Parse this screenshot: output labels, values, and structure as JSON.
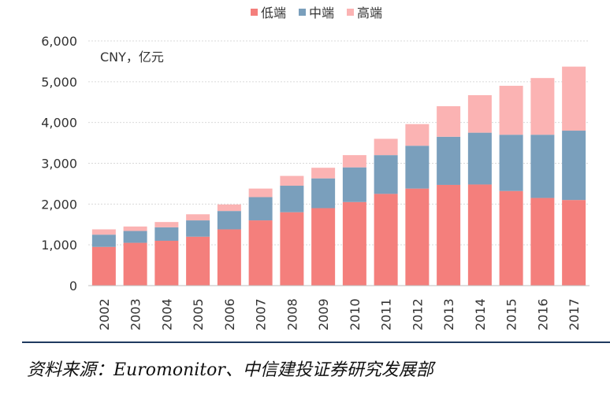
{
  "chart_data": {
    "type": "bar",
    "stacked": true,
    "unit_label": "CNY，亿元",
    "categories": [
      "2002",
      "2003",
      "2004",
      "2005",
      "2006",
      "2007",
      "2008",
      "2009",
      "2010",
      "2011",
      "2012",
      "2013",
      "2014",
      "2015",
      "2016",
      "2017"
    ],
    "series": [
      {
        "name": "低端",
        "color": "#f47f7c",
        "values": [
          950,
          1050,
          1100,
          1200,
          1380,
          1600,
          1800,
          1900,
          2050,
          2250,
          2380,
          2470,
          2480,
          2320,
          2150,
          2100
        ]
      },
      {
        "name": "中端",
        "color": "#7a9fbc",
        "values": [
          300,
          290,
          330,
          400,
          450,
          570,
          650,
          730,
          850,
          950,
          1050,
          1180,
          1270,
          1380,
          1550,
          1700
        ]
      },
      {
        "name": "高端",
        "color": "#fbb3b3",
        "values": [
          130,
          110,
          130,
          150,
          160,
          210,
          240,
          260,
          300,
          400,
          530,
          750,
          920,
          1200,
          1390,
          1570
        ]
      }
    ],
    "ylim": [
      0,
      6000
    ],
    "yticks": [
      0,
      1000,
      2000,
      3000,
      4000,
      5000,
      6000
    ],
    "ytick_labels": [
      "0",
      "1,000",
      "2,000",
      "3,000",
      "4,000",
      "5,000",
      "6,000"
    ],
    "grid": true,
    "legend_position": "top-center"
  },
  "source_text": "资料来源：Euromonitor、中信建投证券研究发展部"
}
